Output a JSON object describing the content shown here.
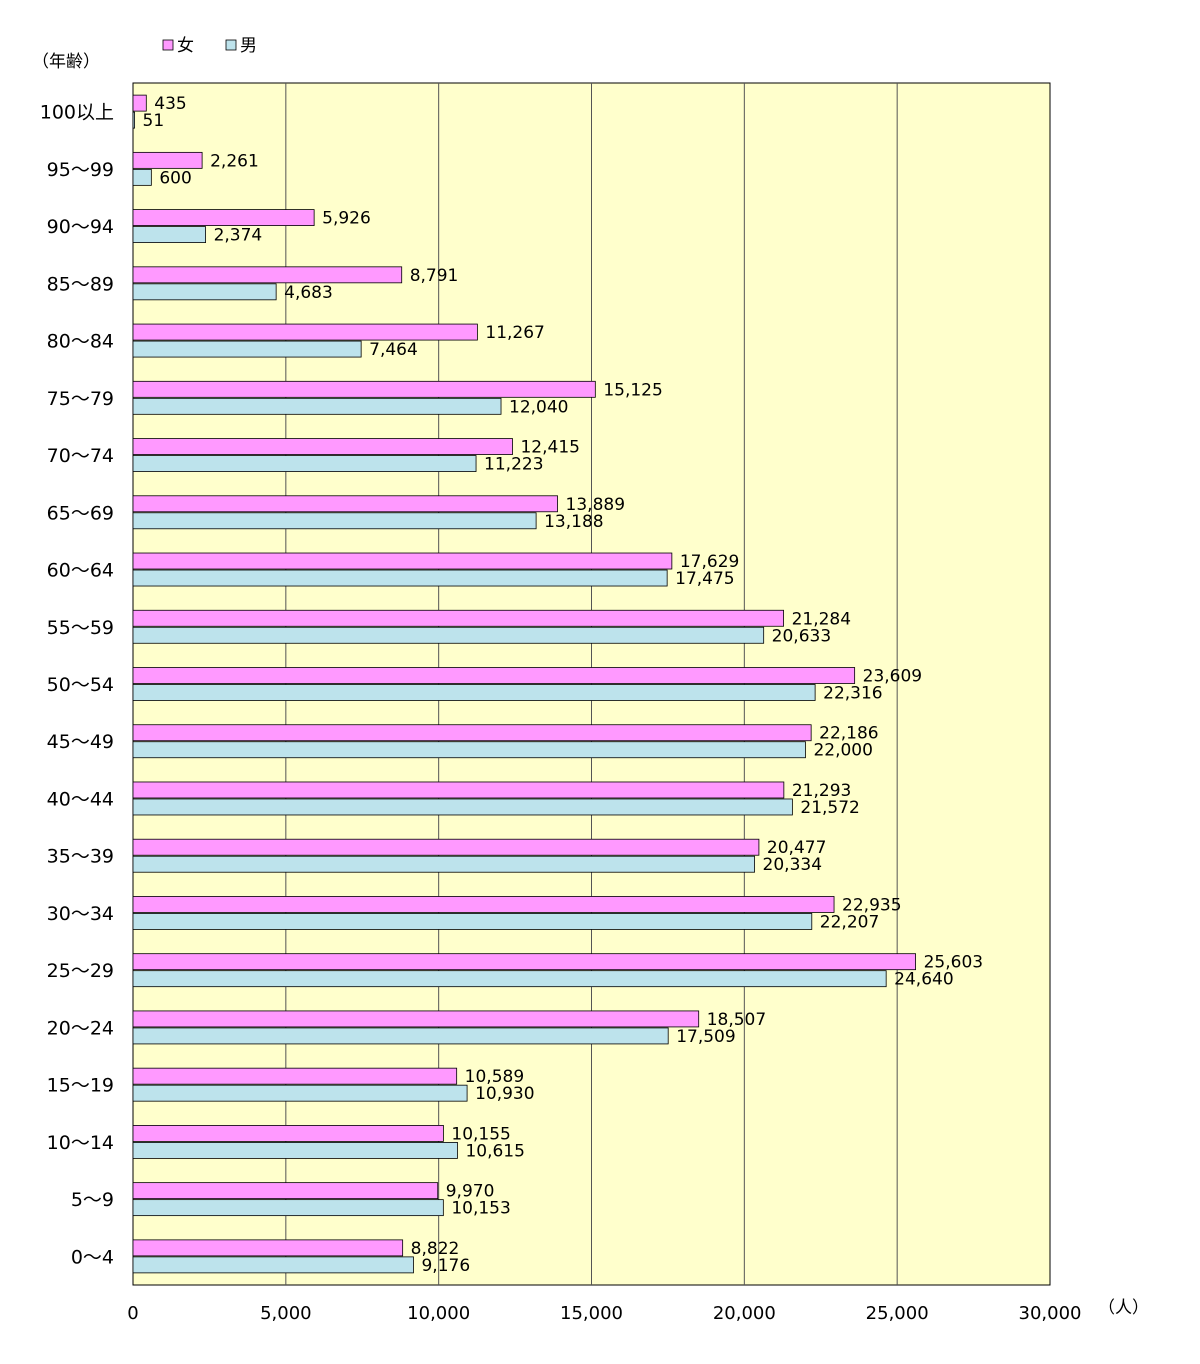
{
  "chart_data": {
    "type": "bar",
    "orientation": "horizontal",
    "ylabel": "（年齢）",
    "xlabel": "（人）",
    "xlim": [
      0,
      30000
    ],
    "xticks": [
      0,
      5000,
      10000,
      15000,
      20000,
      25000,
      30000
    ],
    "xtick_labels": [
      "0",
      "5,000",
      "10,000",
      "15,000",
      "20,000",
      "25,000",
      "30,000"
    ],
    "grid": true,
    "legend_position": "top-left",
    "categories": [
      "100以上",
      "95～99",
      "90～94",
      "85～89",
      "80～84",
      "75～79",
      "70～74",
      "65～69",
      "60～64",
      "55～59",
      "50～54",
      "45～49",
      "40～44",
      "35～39",
      "30～34",
      "25～29",
      "20～24",
      "15～19",
      "10～14",
      "5～9",
      "0～4"
    ],
    "series": [
      {
        "name": "女",
        "color": "#ff99ff",
        "values": [
          435,
          2261,
          5926,
          8791,
          11267,
          15125,
          12415,
          13889,
          17629,
          21284,
          23609,
          22186,
          21293,
          20477,
          22935,
          25603,
          18507,
          10589,
          10155,
          9970,
          8822
        ],
        "labels": [
          "435",
          "2,261",
          "5,926",
          "8,791",
          "11,267",
          "15,125",
          "12,415",
          "13,889",
          "17,629",
          "21,284",
          "23,609",
          "22,186",
          "21,293",
          "20,477",
          "22,935",
          "25,603",
          "18,507",
          "10,589",
          "10,155",
          "9,970",
          "8,822"
        ]
      },
      {
        "name": "男",
        "color": "#bde3ec",
        "values": [
          51,
          600,
          2374,
          4683,
          7464,
          12040,
          11223,
          13188,
          17475,
          20633,
          22316,
          22000,
          21572,
          20334,
          22207,
          24640,
          17509,
          10930,
          10615,
          10153,
          9176
        ],
        "labels": [
          "51",
          "600",
          "2,374",
          "4,683",
          "7,464",
          "12,040",
          "11,223",
          "13,188",
          "17,475",
          "20,633",
          "22,316",
          "22,000",
          "21,572",
          "20,334",
          "22,207",
          "24,640",
          "17,509",
          "10,930",
          "10,615",
          "10,153",
          "9,176"
        ]
      }
    ],
    "plot_background": "#ffffcc"
  }
}
